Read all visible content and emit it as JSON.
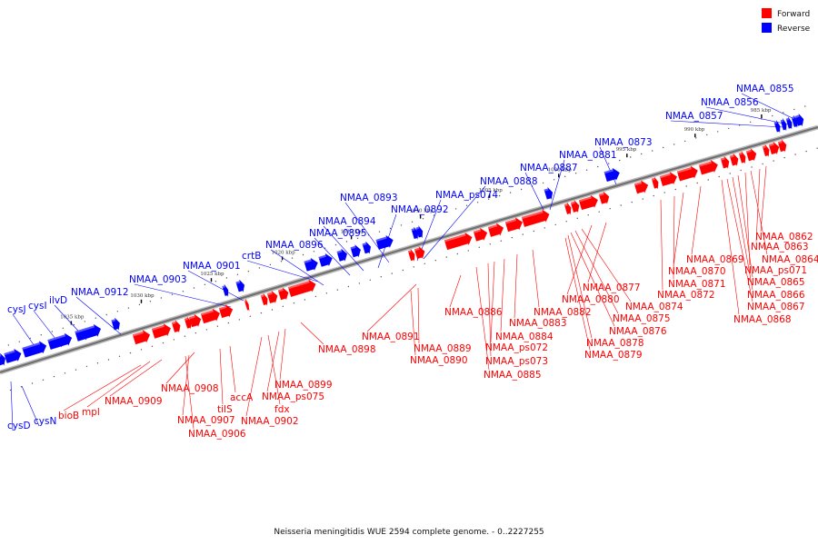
{
  "legend": [
    {
      "label": "Forward",
      "color": "#ff0000"
    },
    {
      "label": "Reverse",
      "color": "#0000ff"
    }
  ],
  "caption": "Neisseria meningitidis WUE 2594 complete genome. - 0..2227255",
  "colors": {
    "forward": "#ff0000",
    "reverse": "#0000ff",
    "backbone": "#707070"
  },
  "ticks": [
    "985 kbp",
    "990 kbp",
    "995 kbp",
    "1000 kbp",
    "1005 kbp",
    "1010 kbp",
    "1015 kbp",
    "1020 kbp",
    "1025 kbp",
    "1030 kbp",
    "1035 kbp"
  ],
  "reverse_labels": [
    "NMAA_0855",
    "NMAA_0856",
    "NMAA_0857",
    "NMAA_0873",
    "NMAA_0881",
    "NMAA_0887",
    "NMAA_0888",
    "NMAA_ps074",
    "NMAA_0893",
    "NMAA_0892",
    "NMAA_0894",
    "NMAA_0895",
    "NMAA_0896",
    "crtB",
    "NMAA_0901",
    "NMAA_0903",
    "NMAA_0912",
    "ilvD",
    "cysI",
    "cysJ",
    "cysD",
    "cysN"
  ],
  "forward_labels": [
    "NMAA_0862",
    "NMAA_0863",
    "NMAA_0864",
    "NMAA_ps071",
    "NMAA_0865",
    "NMAA_0866",
    "NMAA_0867",
    "NMAA_0868",
    "NMAA_0869",
    "NMAA_0870",
    "NMAA_0871",
    "NMAA_0872",
    "NMAA_0877",
    "NMAA_0880",
    "NMAA_0874",
    "NMAA_0875",
    "NMAA_0876",
    "NMAA_0878",
    "NMAA_0879",
    "NMAA_0882",
    "NMAA_0883",
    "NMAA_0884",
    "NMAA_ps072",
    "NMAA_ps073",
    "NMAA_0885",
    "NMAA_0886",
    "NMAA_0891",
    "NMAA_0889",
    "NMAA_0890",
    "NMAA_0898",
    "NMAA_0899",
    "NMAA_ps075",
    "fdx",
    "NMAA_0902",
    "accA",
    "tilS",
    "NMAA_0908",
    "NMAA_0907",
    "NMAA_0906",
    "NMAA_0909",
    "mpl",
    "bioB"
  ]
}
